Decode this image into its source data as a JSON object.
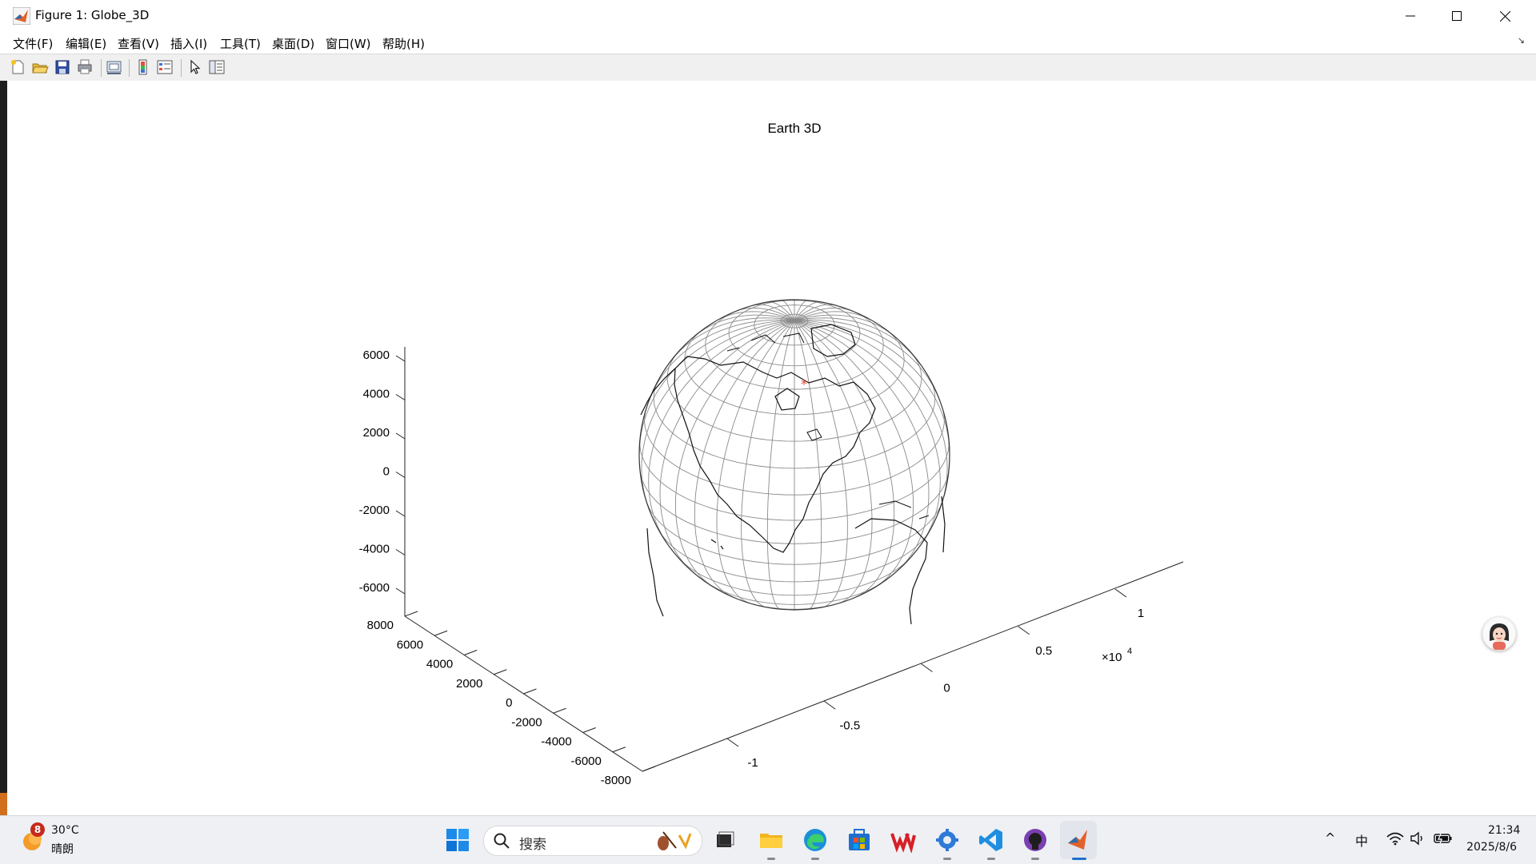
{
  "window": {
    "title": "Figure 1: Globe_3D",
    "controls": [
      "minimize-icon",
      "maximize-icon",
      "close-icon"
    ]
  },
  "menu": {
    "items": [
      "文件(F)",
      "编辑(E)",
      "查看(V)",
      "插入(I)",
      "工具(T)",
      "桌面(D)",
      "窗口(W)",
      "帮助(H)"
    ],
    "corner": "↘"
  },
  "toolbar": {
    "icons": [
      "new-figure-icon",
      "open-file-icon",
      "save-icon",
      "print-icon",
      "link-plot-icon",
      "colorbar-icon",
      "legend-icon",
      "select-cursor-icon",
      "property-inspector-icon"
    ]
  },
  "chart_data": {
    "type": "surface-3d",
    "title": "Earth 3D",
    "description_kind": "wireframe globe with coastlines and a marker point",
    "x_ticks": [
      "-1",
      "-0.5",
      "0",
      "0.5",
      "1"
    ],
    "x_exponent_label": "×10",
    "x_exponent_power": "4",
    "y_ticks": [
      "8000",
      "6000",
      "4000",
      "2000",
      "0",
      "-2000",
      "-4000",
      "-6000",
      "-8000"
    ],
    "z_ticks": [
      "6000",
      "4000",
      "2000",
      "0",
      "-2000",
      "-4000",
      "-6000"
    ],
    "marker_color": "#e8442e",
    "grid_color": "#8a8a8a",
    "coast_color": "#111111"
  },
  "taskbar": {
    "weather": {
      "temp": "30°C",
      "desc": "晴朗",
      "badge": "8"
    },
    "search_placeholder": "搜索",
    "apps": [
      "task-view-icon",
      "file-explorer-icon",
      "edge-icon",
      "store-icon",
      "wps-icon",
      "settings-app-icon",
      "vscode-icon",
      "github-desktop-icon",
      "matlab-icon"
    ],
    "tray": {
      "chevron": "^",
      "ime": "中"
    },
    "clock": {
      "time": "21:34",
      "date": "2025/8/6"
    }
  }
}
